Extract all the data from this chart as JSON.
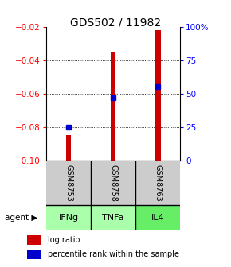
{
  "title": "GDS502 / 11982",
  "categories": [
    "GSM8753",
    "GSM8758",
    "GSM8763"
  ],
  "agents": [
    "IFNg",
    "TNFa",
    "IL4"
  ],
  "log_ratios": [
    -0.085,
    -0.035,
    -0.022
  ],
  "bar_bottom": -0.1,
  "percentile_ranks": [
    25,
    47,
    55
  ],
  "ylim_left": [
    -0.1,
    -0.02
  ],
  "ylim_right": [
    0,
    100
  ],
  "yticks_left": [
    -0.1,
    -0.08,
    -0.06,
    -0.04,
    -0.02
  ],
  "yticks_right": [
    0,
    25,
    50,
    75,
    100
  ],
  "ytick_labels_right": [
    "0",
    "25",
    "50",
    "75",
    "100%"
  ],
  "bar_color": "#cc0000",
  "dot_color": "#0000cc",
  "agent_colors": [
    "#aaffaa",
    "#aaffaa",
    "#66ee66"
  ],
  "gsm_bg_color": "#cccccc",
  "title_fontsize": 10,
  "tick_fontsize": 7.5,
  "legend_fontsize": 7,
  "bar_width": 0.12
}
